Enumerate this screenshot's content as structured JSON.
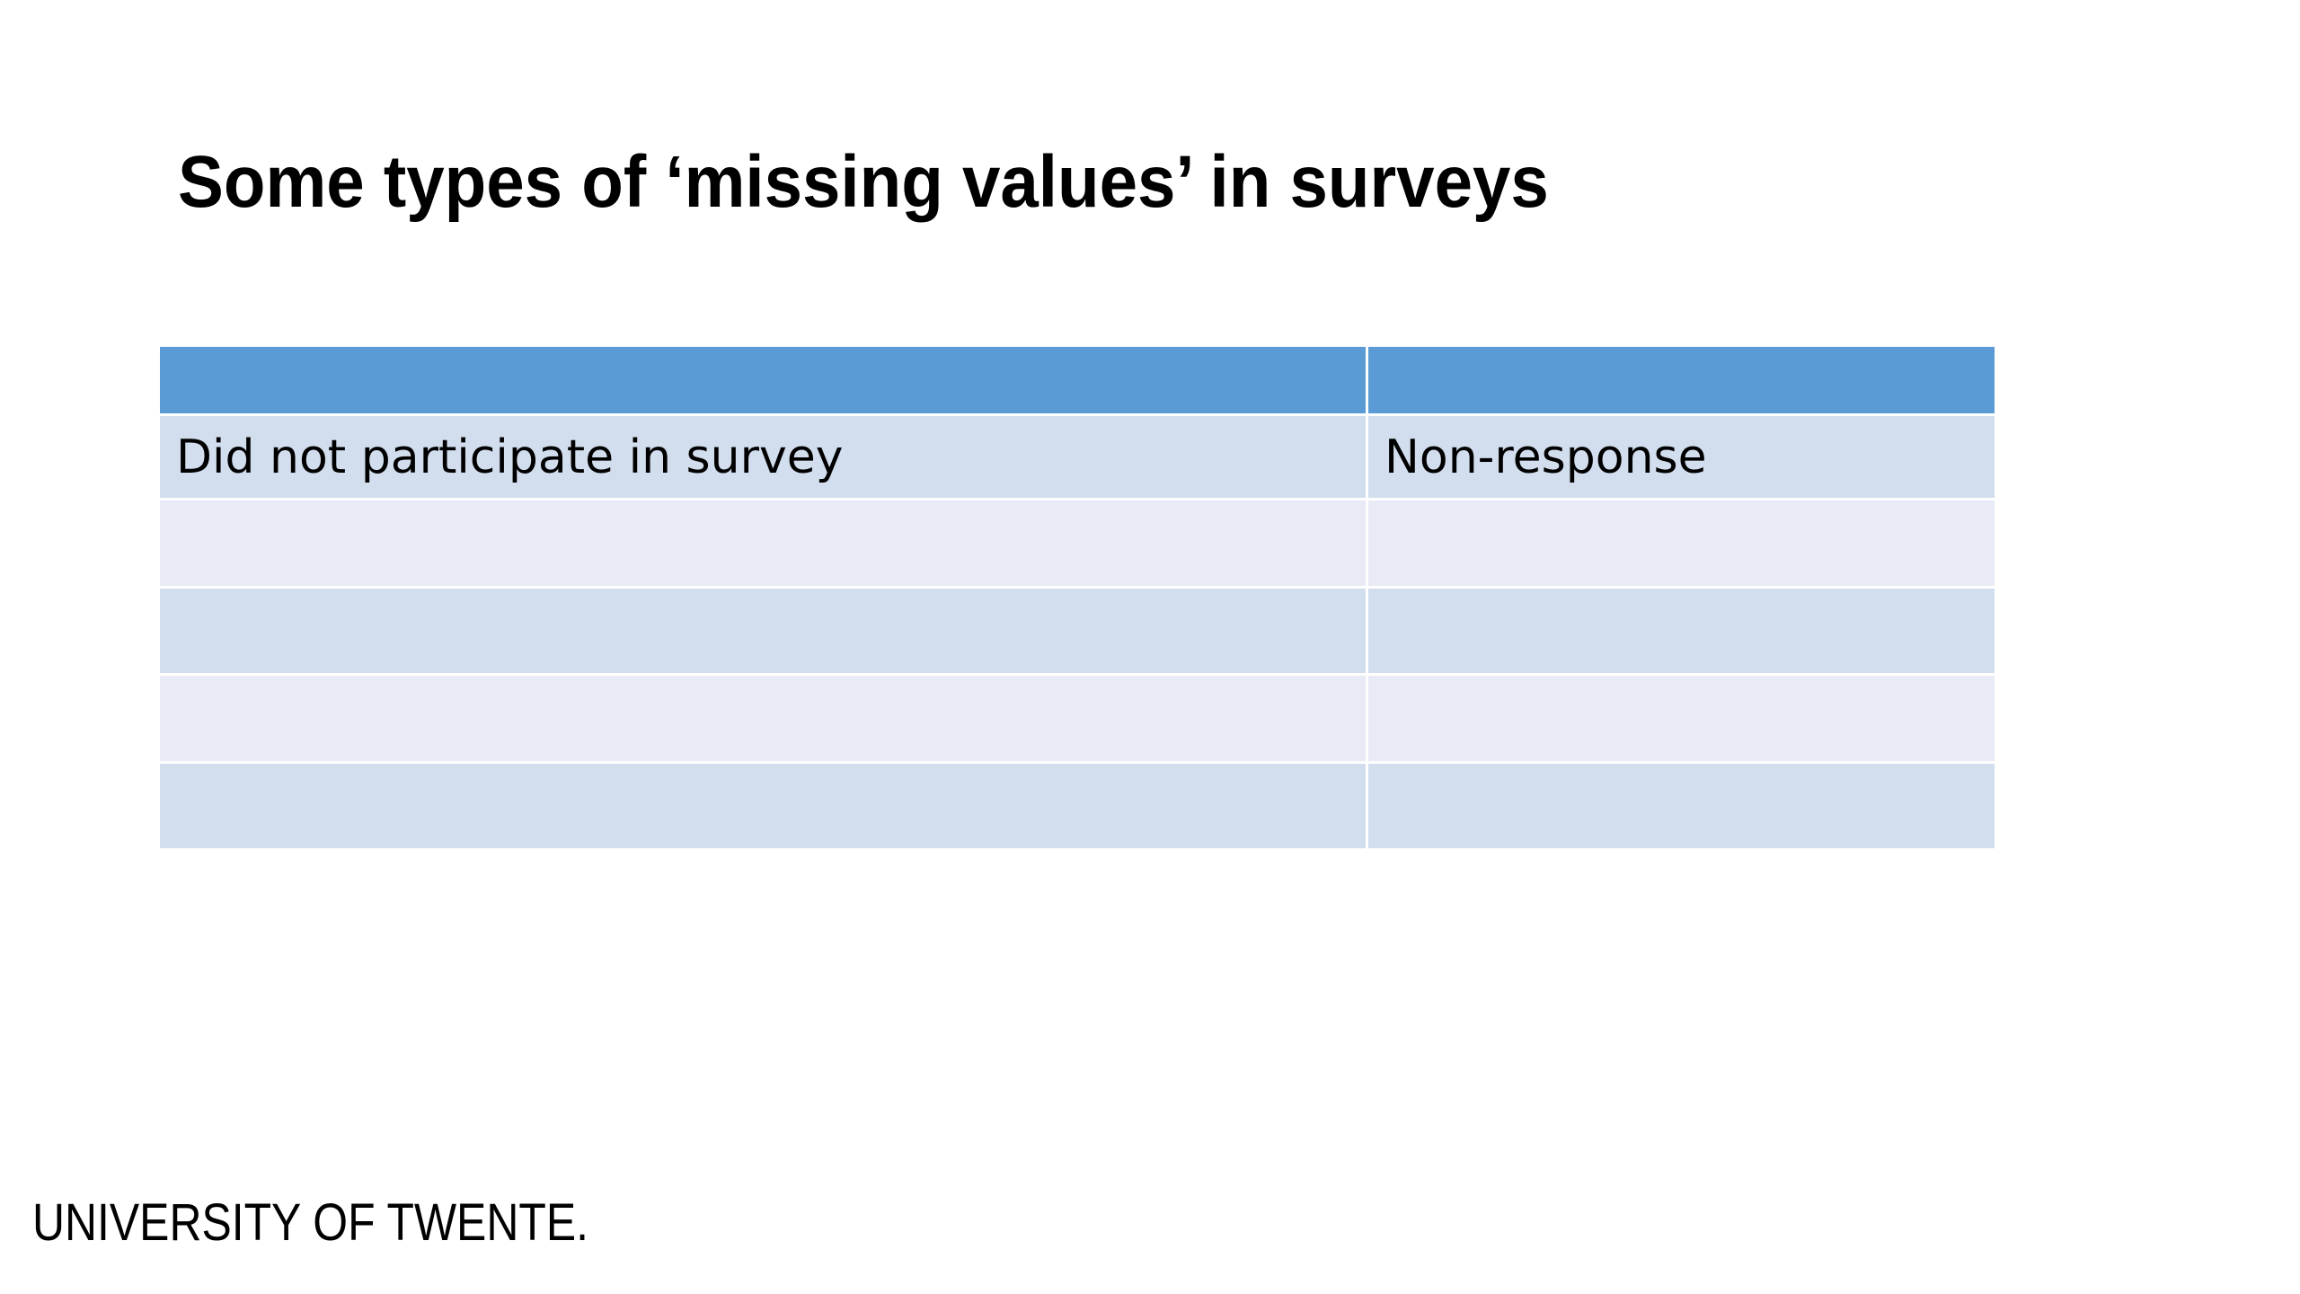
{
  "slide": {
    "title": "Some types of ‘missing values’ in surveys"
  },
  "table": {
    "header": [
      "",
      ""
    ],
    "rows": [
      [
        "Did not participate in survey",
        "Non-response"
      ],
      [
        "",
        ""
      ],
      [
        "",
        ""
      ],
      [
        "",
        ""
      ],
      [
        "",
        ""
      ]
    ]
  },
  "footer": {
    "logo_text": "UNIVERSITY OF TWENTE."
  },
  "colors": {
    "header_fill": "#5b9bd5",
    "row_band_1": "#d2deee",
    "row_band_2": "#e8ebf6"
  }
}
